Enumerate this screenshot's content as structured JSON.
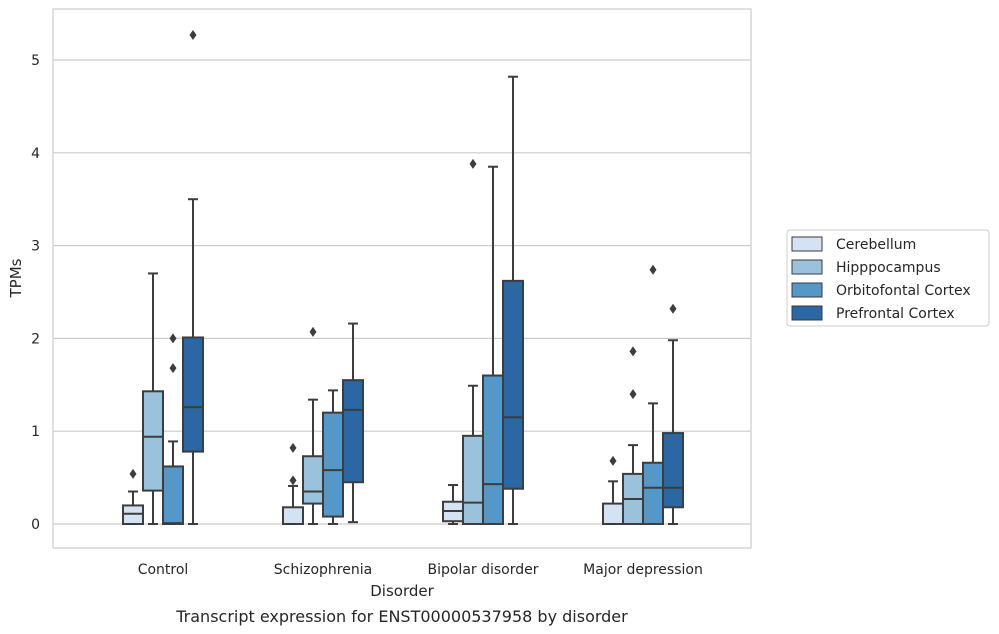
{
  "chart_data": {
    "type": "box",
    "caption": "Transcript expression for ENST00000537958 by disorder",
    "xlabel": "Disorder",
    "ylabel": "TPMs",
    "ylim": [
      -0.25,
      5.55
    ],
    "yticks": [
      0,
      1,
      2,
      3,
      4,
      5
    ],
    "grid": "horizontal",
    "legend_position": "right",
    "categories": [
      "Control",
      "Schizophrenia",
      "Bipolar disorder",
      "Major depression"
    ],
    "series": [
      {
        "name": "Cerebellum",
        "color": "#d4e3f3",
        "boxes": [
          {
            "q1": 0.0,
            "median": 0.11,
            "q3": 0.2,
            "whisker_low": 0.0,
            "whisker_high": 0.35,
            "outliers": [
              0.54
            ]
          },
          {
            "q1": 0.0,
            "median": 0.0,
            "q3": 0.18,
            "whisker_low": 0.0,
            "whisker_high": 0.41,
            "outliers": [
              0.47,
              0.82
            ]
          },
          {
            "q1": 0.03,
            "median": 0.14,
            "q3": 0.24,
            "whisker_low": 0.0,
            "whisker_high": 0.42,
            "outliers": []
          },
          {
            "q1": 0.0,
            "median": 0.0,
            "q3": 0.22,
            "whisker_low": 0.0,
            "whisker_high": 0.46,
            "outliers": [
              0.68
            ]
          }
        ]
      },
      {
        "name": "Hipppocampus",
        "color": "#9ac2dc",
        "boxes": [
          {
            "q1": 0.36,
            "median": 0.94,
            "q3": 1.43,
            "whisker_low": 0.0,
            "whisker_high": 2.7,
            "outliers": []
          },
          {
            "q1": 0.22,
            "median": 0.35,
            "q3": 0.73,
            "whisker_low": 0.0,
            "whisker_high": 1.34,
            "outliers": [
              2.07
            ]
          },
          {
            "q1": 0.0,
            "median": 0.23,
            "q3": 0.95,
            "whisker_low": 0.0,
            "whisker_high": 1.49,
            "outliers": [
              3.88
            ]
          },
          {
            "q1": 0.0,
            "median": 0.27,
            "q3": 0.54,
            "whisker_low": 0.0,
            "whisker_high": 0.85,
            "outliers": [
              1.4,
              1.86
            ]
          }
        ]
      },
      {
        "name": "Orbitofontal Cortex",
        "color": "#5598c7",
        "boxes": [
          {
            "q1": 0.0,
            "median": 0.01,
            "q3": 0.62,
            "whisker_low": 0.0,
            "whisker_high": 0.89,
            "outliers": [
              1.68,
              2.0
            ]
          },
          {
            "q1": 0.08,
            "median": 0.58,
            "q3": 1.2,
            "whisker_low": 0.0,
            "whisker_high": 1.44,
            "outliers": []
          },
          {
            "q1": 0.0,
            "median": 0.43,
            "q3": 1.6,
            "whisker_low": 0.0,
            "whisker_high": 3.85,
            "outliers": []
          },
          {
            "q1": 0.0,
            "median": 0.39,
            "q3": 0.66,
            "whisker_low": 0.0,
            "whisker_high": 1.3,
            "outliers": [
              2.74
            ]
          }
        ]
      },
      {
        "name": "Prefrontal Cortex",
        "color": "#2a67a3",
        "boxes": [
          {
            "q1": 0.78,
            "median": 1.26,
            "q3": 2.01,
            "whisker_low": 0.0,
            "whisker_high": 3.5,
            "outliers": [
              5.27
            ]
          },
          {
            "q1": 0.45,
            "median": 1.23,
            "q3": 1.55,
            "whisker_low": 0.02,
            "whisker_high": 2.16,
            "outliers": []
          },
          {
            "q1": 0.38,
            "median": 1.15,
            "q3": 2.62,
            "whisker_low": 0.0,
            "whisker_high": 4.82,
            "outliers": []
          },
          {
            "q1": 0.18,
            "median": 0.39,
            "q3": 0.98,
            "whisker_low": 0.0,
            "whisker_high": 1.98,
            "outliers": [
              2.32
            ]
          }
        ]
      }
    ]
  }
}
